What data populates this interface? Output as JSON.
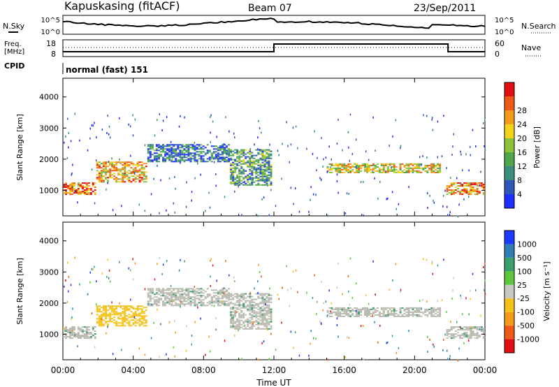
{
  "header": {
    "title": "Kapuskasing (fitACF)",
    "beam": "Beam 07",
    "date": "23/Sep/2011"
  },
  "sky_panel": {
    "left_label": "N.Sky",
    "right_label": "N.Search",
    "left_ticks": [
      "10^5",
      "10^0"
    ],
    "right_ticks": [
      "10^5",
      "10^0"
    ]
  },
  "freq_panel": {
    "left_label_1": "Freq.",
    "left_label_2": "[MHz]",
    "right_label": "Nave",
    "left_ticks": [
      "18",
      "8"
    ],
    "right_ticks": [
      "60",
      "0"
    ]
  },
  "cpid": {
    "label": "CPID",
    "mode": "normal (fast) 151"
  },
  "colors": {
    "power_scale": [
      "#1f2fff",
      "#2d57b8",
      "#3a8f7c",
      "#4ea84a",
      "#8bc43a",
      "#f2d21a",
      "#f59a19",
      "#ef5a1a",
      "#e01010"
    ],
    "velocity_scale": [
      "#1a3aff",
      "#2f7fb6",
      "#3a9f6c",
      "#5ec63a",
      "#c8c8c0",
      "#f5c21a",
      "#f59a19",
      "#ef5a1a",
      "#e01010"
    ],
    "ground_scatter": "#b9b9b0"
  },
  "chart_data": [
    {
      "type": "heatmap",
      "title": "Power",
      "xlabel": "",
      "ylabel": "Slant Range [km]",
      "x_ticks": [
        "00:00",
        "04:00",
        "08:00",
        "12:00",
        "16:00",
        "20:00",
        "00:00"
      ],
      "y_ticks": [
        1000,
        2000,
        3000,
        4000
      ],
      "xlim_hours": [
        0,
        24
      ],
      "ylim": [
        180,
        4600
      ],
      "colorbar": {
        "label": "Power [dB]",
        "ticks": [
          4,
          8,
          12,
          16,
          20,
          24,
          28
        ],
        "range": [
          0,
          30
        ]
      },
      "echo_bands": [
        {
          "t0": 0.0,
          "t1": 1.9,
          "r0": 850,
          "r1": 1250,
          "value": 24
        },
        {
          "t0": 1.9,
          "t1": 4.8,
          "r0": 1250,
          "r1": 1900,
          "value": 20
        },
        {
          "t0": 4.8,
          "t1": 9.5,
          "r0": 1900,
          "r1": 2450,
          "value": 6
        },
        {
          "t0": 9.5,
          "t1": 11.9,
          "r0": 1150,
          "r1": 2300,
          "value": 10
        },
        {
          "t0": 15.0,
          "t1": 21.5,
          "r0": 1550,
          "r1": 1850,
          "value": 18
        },
        {
          "t0": 21.8,
          "t1": 24.0,
          "r0": 850,
          "r1": 1250,
          "value": 22
        }
      ]
    },
    {
      "type": "heatmap",
      "title": "Velocity",
      "xlabel": "Time UT",
      "ylabel": "Slant Range [km]",
      "x_ticks": [
        "00:00",
        "04:00",
        "08:00",
        "12:00",
        "16:00",
        "20:00",
        "00:00"
      ],
      "y_ticks": [
        1000,
        2000,
        3000,
        4000
      ],
      "xlim_hours": [
        0,
        24
      ],
      "ylim": [
        180,
        4600
      ],
      "colorbar": {
        "label": "Velocity [m s⁻¹]",
        "ticks": [
          1000,
          500,
          100,
          25,
          -25,
          -100,
          -500,
          -1000
        ]
      },
      "echo_bands": [
        {
          "t0": 0.0,
          "t1": 1.9,
          "r0": 850,
          "r1": 1250,
          "value": 0
        },
        {
          "t0": 1.9,
          "t1": 4.8,
          "r0": 1250,
          "r1": 1900,
          "value": -300
        },
        {
          "t0": 4.8,
          "t1": 9.5,
          "r0": 1900,
          "r1": 2450,
          "value": 0
        },
        {
          "t0": 9.5,
          "t1": 11.9,
          "r0": 1150,
          "r1": 2300,
          "value": 0
        },
        {
          "t0": 15.0,
          "t1": 21.5,
          "r0": 1550,
          "r1": 1850,
          "value": 0
        },
        {
          "t0": 21.8,
          "t1": 24.0,
          "r0": 850,
          "r1": 1250,
          "value": 0
        }
      ]
    }
  ]
}
